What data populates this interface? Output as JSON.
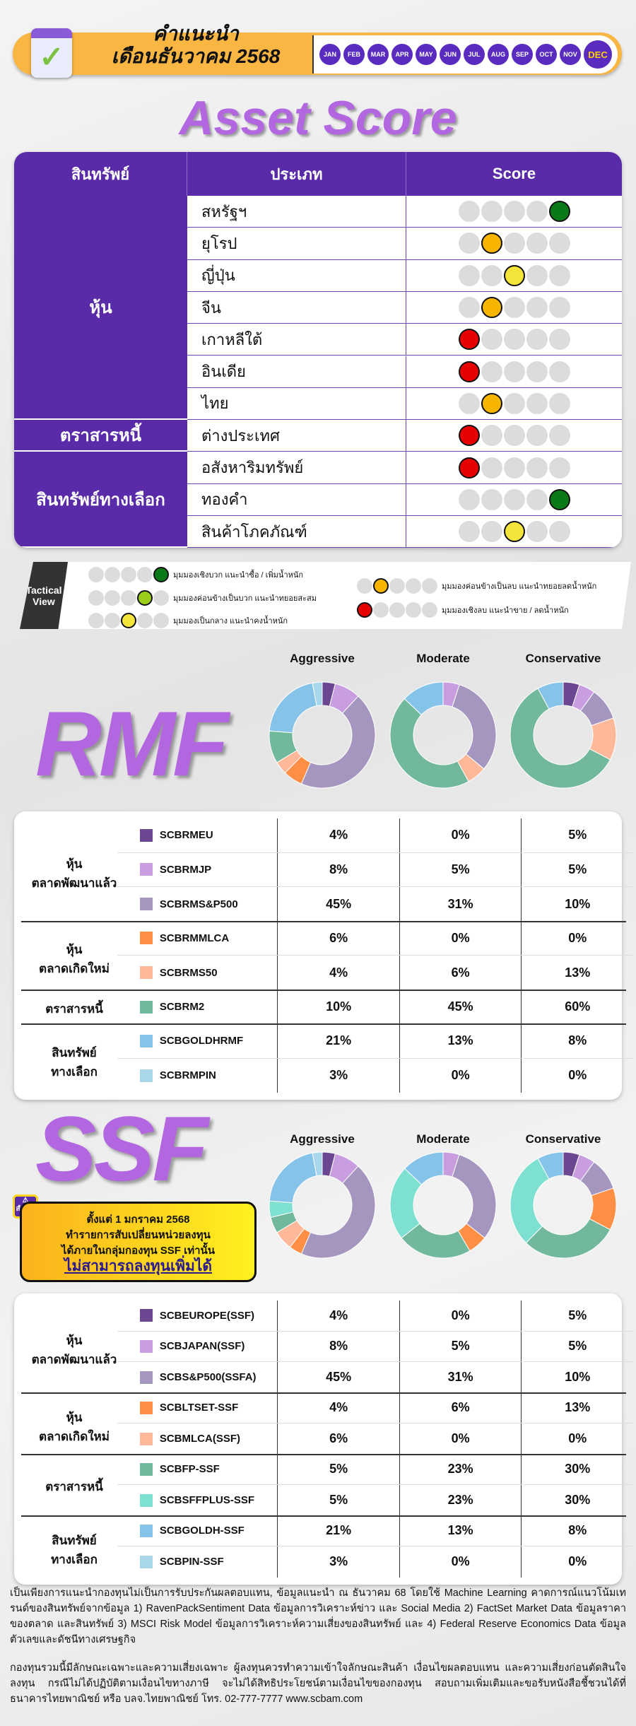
{
  "header": {
    "line1": "คำแนะนำ",
    "line2": "เดือนธันวาคม 2568",
    "months": [
      "JAN",
      "FEB",
      "MAR",
      "APR",
      "MAY",
      "JUN",
      "JUL",
      "AUG",
      "SEP",
      "OCT",
      "NOV",
      "DEC"
    ],
    "current_month": "DEC",
    "calendar_icon": "calendar-check-icon"
  },
  "asset_score": {
    "title": "Asset Score",
    "headers": [
      "สินทรัพย์",
      "ประเภท",
      "Score"
    ],
    "groups": [
      {
        "name": "หุ้น",
        "rows": 7
      },
      {
        "name": "ตราสารหนี้",
        "rows": 1
      },
      {
        "name": "สินทรัพย์ทางเลือก",
        "rows": 3
      }
    ],
    "rows": [
      {
        "label": "สหรัฐฯ",
        "score": 5
      },
      {
        "label": "ยุโรป",
        "score": 2
      },
      {
        "label": "ญี่ปุ่น",
        "score": 3
      },
      {
        "label": "จีน",
        "score": 2
      },
      {
        "label": "เกาหลีใต้",
        "score": 1
      },
      {
        "label": "อินเดีย",
        "score": 1
      },
      {
        "label": "ไทย",
        "score": 2
      },
      {
        "label": "ต่างประเทศ",
        "score": 1
      },
      {
        "label": "อสังหาริมทรัพย์",
        "score": 1
      },
      {
        "label": "ทองคำ",
        "score": 5
      },
      {
        "label": "สินค้าโภคภัณฑ์",
        "score": 3
      }
    ],
    "score_colors": {
      "1": "#e60000",
      "2": "#f7b500",
      "3": "#f5e43a",
      "4": "#9acd1a",
      "5": "#0a7a18"
    }
  },
  "tactical": {
    "title_line1": "Tactical",
    "title_line2": "View",
    "legend": [
      {
        "score": 5,
        "text": "มุมมองเชิงบวก แนะนำซื้อ / เพิ่มน้ำหนัก"
      },
      {
        "score": 4,
        "text": "มุมมองค่อนข้างเป็นบวก แนะนำทยอยสะสม"
      },
      {
        "score": 3,
        "text": "มุมมองเป็นกลาง แนะนำคงน้ำหนัก"
      },
      {
        "score": 2,
        "text": "มุมมองค่อนข้างเป็นลบ แนะนำทยอยลดน้ำหนัก"
      },
      {
        "score": 1,
        "text": "มุมมองเชิงลบ แนะนำขาย / ลดน้ำหนัก"
      }
    ]
  },
  "portfolios": [
    "Aggressive",
    "Moderate",
    "Conservative"
  ],
  "rmf": {
    "title": "RMF",
    "groups": [
      {
        "name": "หุ้น\nตลาดพัฒนาแล้ว",
        "l1": "หุ้น",
        "l2": "ตลาดพัฒนาแล้ว"
      },
      {
        "l1": "หุ้น",
        "l2": "ตลาดเกิดใหม่"
      },
      {
        "l1": "ตราสารหนี้",
        "l2": ""
      },
      {
        "l1": "สินทรัพย์",
        "l2": "ทางเลือก"
      }
    ],
    "funds": [
      {
        "name": "SCBRMEU",
        "color": "#6a4790",
        "v": [
          "4%",
          "0%",
          "5%"
        ]
      },
      {
        "name": "SCBRMJP",
        "color": "#c89ee0",
        "v": [
          "8%",
          "5%",
          "5%"
        ]
      },
      {
        "name": "SCBRMS&P500",
        "color": "#a596c0",
        "v": [
          "45%",
          "31%",
          "10%"
        ]
      },
      {
        "name": "SCBRMMLCA",
        "color": "#ff8f45",
        "v": [
          "6%",
          "0%",
          "0%"
        ]
      },
      {
        "name": "SCBRMS50",
        "color": "#ffb899",
        "v": [
          "4%",
          "6%",
          "13%"
        ]
      },
      {
        "name": "SCBRM2",
        "color": "#72b89c",
        "v": [
          "10%",
          "45%",
          "60%"
        ]
      },
      {
        "name": "SCBGOLDHRMF",
        "color": "#86c3e8",
        "v": [
          "21%",
          "13%",
          "8%"
        ]
      },
      {
        "name": "SCBRMPIN",
        "color": "#a8d6ea",
        "v": [
          "3%",
          "0%",
          "0%"
        ]
      }
    ]
  },
  "ssf": {
    "title": "SSF",
    "groups": [
      {
        "l1": "หุ้น",
        "l2": "ตลาดพัฒนาแล้ว"
      },
      {
        "l1": "หุ้น",
        "l2": "ตลาดเกิดใหม่"
      },
      {
        "l1": "ตราสารหนี้",
        "l2": ""
      },
      {
        "l1": "สินทรัพย์",
        "l2": "ทางเลือก"
      }
    ],
    "funds": [
      {
        "name": "SCBEUROPE(SSF)",
        "color": "#6a4790",
        "v": [
          "4%",
          "0%",
          "5%"
        ]
      },
      {
        "name": "SCBJAPAN(SSF)",
        "color": "#c89ee0",
        "v": [
          "8%",
          "5%",
          "5%"
        ]
      },
      {
        "name": "SCBS&P500(SSFA)",
        "color": "#a596c0",
        "v": [
          "45%",
          "31%",
          "10%"
        ]
      },
      {
        "name": "SCBLTSET-SSF",
        "color": "#ff8f45",
        "v": [
          "4%",
          "6%",
          "13%"
        ]
      },
      {
        "name": "SCBMLCA(SSF)",
        "color": "#ffb899",
        "v": [
          "6%",
          "0%",
          "0%"
        ]
      },
      {
        "name": "SCBFP-SSF",
        "color": "#72b89c",
        "v": [
          "5%",
          "23%",
          "30%"
        ]
      },
      {
        "name": "SCBSFFPLUS-SSF",
        "color": "#7ee0d0",
        "v": [
          "5%",
          "23%",
          "30%"
        ]
      },
      {
        "name": "SCBGOLDH-SSF",
        "color": "#86c3e8",
        "v": [
          "21%",
          "13%",
          "8%"
        ]
      },
      {
        "name": "SCBPIN-SSF",
        "color": "#a8d6ea",
        "v": [
          "3%",
          "0%",
          "0%"
        ]
      }
    ],
    "warning": {
      "badge": "สำคัญ",
      "line1": "ตั้งแต่ 1 มกราคม 2568",
      "line2": "ทำรายการสับเปลี่ยนหน่วยลงทุน",
      "line3": "ได้ภายในกลุ่มกองทุน SSF เท่านั้น",
      "line4": "ไม่สามารถลงทุนเพิ่มได้"
    }
  },
  "footer": {
    "p1": "เป็นเพียงการแนะนำกองทุนไม่เป็นการรับประกันผลตอบแทน, ข้อมูลแนะนำ ณ ธันวาคม 68 โดยใช้ Machine Learning คาดการณ์แนวโน้มเทรนด์ของสินทรัพย์จากข้อมูล 1) RavenPackSentiment Data ข้อมูลการวิเคราะห์ข่าว และ Social Media 2) FactSet Market Data ข้อมูลราคาของตลาด และสินทรัพย์ 3) MSCI Risk Model ข้อมูลการวิเคราะห์ความเสี่ยงของสินทรัพย์ และ 4) Federal Reserve Economics Data ข้อมูลตัวเลขและดัชนีทางเศรษฐกิจ",
    "p2": "กองทุนรวมนี้มีลักษณะเฉพาะและความเสี่ยงเฉพาะ ผู้ลงทุนควรทำความเข้าใจลักษณะสินค้า เงื่อนไขผลตอบแทน และความเสี่ยงก่อนตัดสินใจลงทุน กรณีไม่ได้ปฏิบัติตามเงื่อนไขทางภาษี จะไม่ได้สิทธิประโยชน์ตามเงื่อนไขของกองทุน สอบถามเพิ่มเติมและขอรับหนังสือชี้ชวนได้ที่ธนาคารไทยพาณิชย์ หรือ บลจ.ไทยพาณิชย์ โทร. 02-777-7777 www.scbam.com"
  }
}
